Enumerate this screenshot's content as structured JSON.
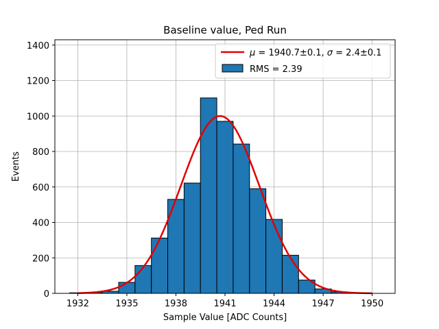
{
  "chart_data": {
    "type": "bar",
    "title": "Baseline value, Ped Run",
    "xlabel": "Sample Value [ADC Counts]",
    "ylabel": "Events",
    "xlim": [
      1930.6,
      1951.4
    ],
    "ylim": [
      0,
      1430
    ],
    "xticks": [
      1932,
      1935,
      1938,
      1941,
      1944,
      1947,
      1950
    ],
    "yticks": [
      0,
      200,
      400,
      600,
      800,
      1000,
      1200,
      1400
    ],
    "grid": true,
    "legend_position": "top-right",
    "histogram": {
      "name": "RMS = 2.39",
      "color": "#1f77b4",
      "edgecolor": "#000000",
      "bin_edges": [
        1931.5,
        1932.5,
        1933.5,
        1934.5,
        1935.5,
        1936.5,
        1937.5,
        1938.5,
        1939.5,
        1940.5,
        1941.5,
        1942.5,
        1943.5,
        1944.5,
        1945.5,
        1946.5,
        1947.5,
        1948.5
      ],
      "counts": [
        3,
        5,
        12,
        62,
        157,
        312,
        530,
        622,
        1102,
        970,
        842,
        590,
        417,
        215,
        75,
        25,
        8
      ]
    },
    "fit": {
      "name": "$\\mu = 1940.7{\\pm}0.1$, $\\sigma = 2.4{\\pm}0.1$",
      "legend_prefix": "μ",
      "legend_mid": " = 1940.7±0.1, ",
      "legend_sigma": "σ",
      "legend_suffix": " = 2.4±0.1",
      "color": "#e00000",
      "type": "gaussian",
      "mu": 1940.7,
      "sigma": 2.4,
      "amplitude": 1000,
      "x_range": [
        1932,
        1950
      ]
    }
  }
}
